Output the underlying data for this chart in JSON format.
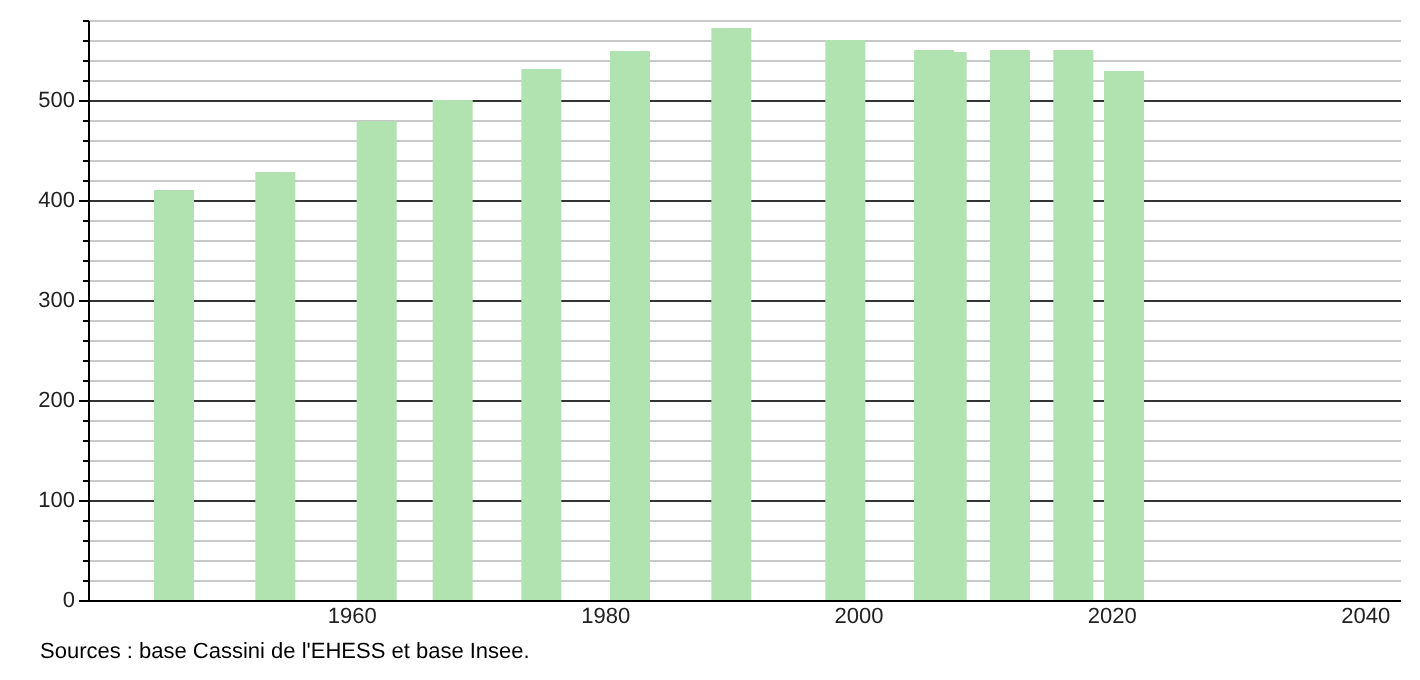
{
  "chart_data": {
    "type": "bar",
    "x": [
      1946,
      1954,
      1962,
      1968,
      1975,
      1982,
      1990,
      1999,
      2006,
      2007,
      2012,
      2017,
      2021
    ],
    "values": [
      410,
      428,
      479,
      500,
      531,
      549,
      572,
      560,
      550,
      548,
      550,
      550,
      529
    ],
    "color": "#b0e3b0",
    "xlim": [
      1940,
      2042
    ],
    "xticks": [
      1960,
      1980,
      2000,
      2020,
      2040
    ],
    "ylim": [
      0,
      580
    ],
    "yticks": [
      0,
      {
        "value": 20,
        "label": null
      },
      {
        "value": 40,
        "label": null
      },
      {
        "value": 60,
        "label": null
      },
      {
        "value": 80,
        "label": null
      },
      100,
      {
        "value": 120,
        "label": null
      },
      {
        "value": 140,
        "label": null
      },
      {
        "value": 160,
        "label": null
      },
      {
        "value": 180,
        "label": null
      },
      200,
      {
        "value": 220,
        "label": null
      },
      {
        "value": 240,
        "label": null
      },
      {
        "value": 260,
        "label": null
      },
      {
        "value": 280,
        "label": null
      },
      300,
      {
        "value": 320,
        "label": null
      },
      {
        "value": 340,
        "label": null
      },
      {
        "value": 360,
        "label": null
      },
      {
        "value": 380,
        "label": null
      },
      400,
      {
        "value": 420,
        "label": null
      },
      {
        "value": 440,
        "label": null
      },
      {
        "value": 460,
        "label": null
      },
      {
        "value": 480,
        "label": null
      },
      500,
      {
        "value": 520,
        "label": null
      },
      {
        "value": 540,
        "label": null
      },
      {
        "value": 560,
        "label": null
      },
      {
        "value": 580,
        "label": null
      }
    ],
    "grid": "y",
    "annotations": [
      "Sources : base Cassini de l'EHESS et base Insee."
    ]
  }
}
